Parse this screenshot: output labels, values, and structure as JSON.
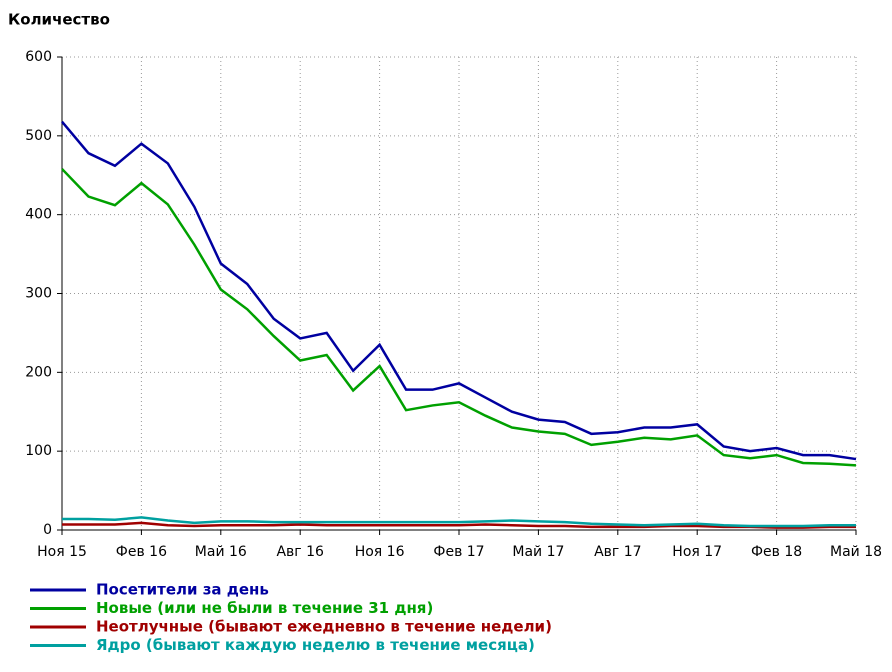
{
  "chart_data": {
    "type": "line",
    "title": "Количество",
    "categories": [
      "Ноя 15",
      null,
      null,
      "Фев 16",
      null,
      null,
      "Май 16",
      null,
      null,
      "Авг 16",
      null,
      null,
      "Ноя 16",
      null,
      null,
      "Фев 17",
      null,
      null,
      "Май 17",
      null,
      null,
      "Авг 17",
      null,
      null,
      "Ноя 17",
      null,
      null,
      "Фев 18",
      null,
      null,
      "Май 18"
    ],
    "series": [
      {
        "name": "Посетители за день",
        "color": "#0000a0",
        "values": [
          518,
          478,
          462,
          490,
          465,
          410,
          338,
          312,
          268,
          243,
          250,
          202,
          235,
          178,
          178,
          186,
          168,
          150,
          140,
          137,
          122,
          124,
          130,
          130,
          134,
          106,
          100,
          104,
          95,
          95,
          90
        ]
      },
      {
        "name": "Новые (или не были в течение 31 дня)",
        "color": "#00a000",
        "values": [
          458,
          423,
          412,
          440,
          413,
          362,
          305,
          280,
          246,
          215,
          222,
          177,
          208,
          152,
          158,
          162,
          145,
          130,
          125,
          122,
          108,
          112,
          117,
          115,
          120,
          95,
          91,
          95,
          85,
          84,
          82
        ]
      },
      {
        "name": "Неотлучные (бывают ежедневно в течение недели)",
        "color": "#a00000",
        "values": [
          7,
          7,
          7,
          9,
          6,
          5,
          6,
          6,
          6,
          7,
          6,
          6,
          6,
          6,
          6,
          6,
          7,
          6,
          5,
          5,
          4,
          4,
          4,
          5,
          5,
          4,
          4,
          3,
          3,
          4,
          4
        ]
      },
      {
        "name": "Ядро (бывают каждую неделю в течение месяца)",
        "color": "#00a0a0",
        "values": [
          14,
          14,
          13,
          16,
          12,
          9,
          11,
          11,
          10,
          10,
          10,
          10,
          10,
          10,
          10,
          10,
          11,
          12,
          11,
          10,
          8,
          7,
          6,
          7,
          8,
          6,
          5,
          5,
          5,
          6,
          6
        ]
      }
    ],
    "ylim": [
      0,
      600
    ],
    "yticks": [
      0,
      100,
      200,
      300,
      400,
      500,
      600
    ],
    "grid": true,
    "legend": "bottom"
  }
}
